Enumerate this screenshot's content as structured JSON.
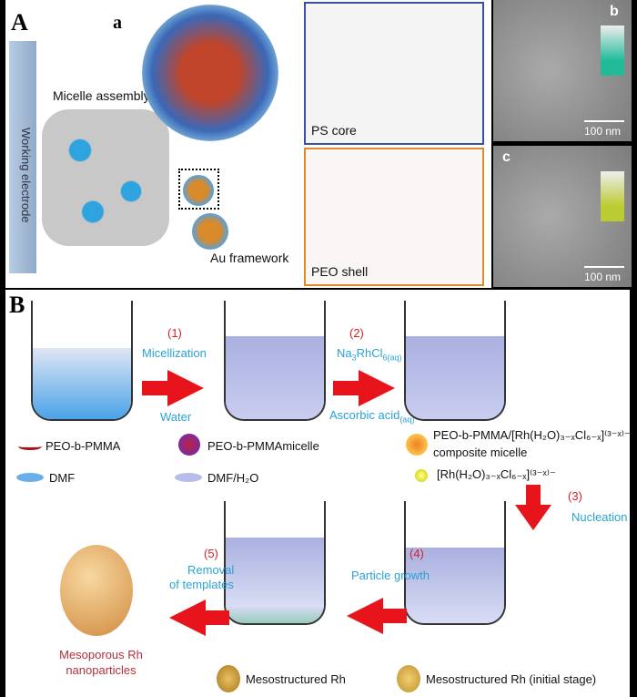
{
  "panel_A": {
    "label": "A",
    "sub_a": "a",
    "sub_b": "b",
    "sub_c": "c",
    "working_electrode": "Working electrode",
    "micelle_assembly": "Micelle assembly",
    "au_framework": "Au framework",
    "ps_core": "PS core",
    "peo_shell": "PEO shell",
    "scale_b": "100 nm",
    "scale_c": "100 nm"
  },
  "panel_B": {
    "label": "B",
    "steps": {
      "s1": "(1)",
      "s2": "(2)",
      "s3": "(3)",
      "s4": "(4)",
      "s5": "(5)"
    },
    "micellization": "Micellization",
    "water": "Water",
    "na3rhcl6": "Na",
    "na3rhcl6_sub1": "3",
    "na3rhcl6_mid": "RhCl",
    "na3rhcl6_sub2": "6(aq)",
    "ascorbic": "Ascorbic acid",
    "ascorbic_sub": "(aq)",
    "nucleation": "Nucleation",
    "particle_growth": "Particle growth",
    "removal_1": "Removal",
    "removal_2": "of templates",
    "product_1": "Mesoporous Rh",
    "product_2": "nanoparticles",
    "legend": {
      "peo_b_pmma": "PEO-b-PMMA",
      "micelle": "PEO-b-PMMAmicelle",
      "composite_1": "PEO-b-PMMA/[Rh(H₂O)₃₋ₓCl₆₋ₓ]⁽³⁻ˣ⁾⁻",
      "composite_2": "composite micelle",
      "dmf": "DMF",
      "dmf_h2o": "DMF/H₂O",
      "rh_complex": "[Rh(H₂O)₃₋ₓCl₆₋ₓ]⁽³⁻ˣ⁾⁻",
      "meso_rh": "Mesostructured Rh",
      "meso_rh_initial": "Mesostructured Rh (initial stage)"
    }
  }
}
